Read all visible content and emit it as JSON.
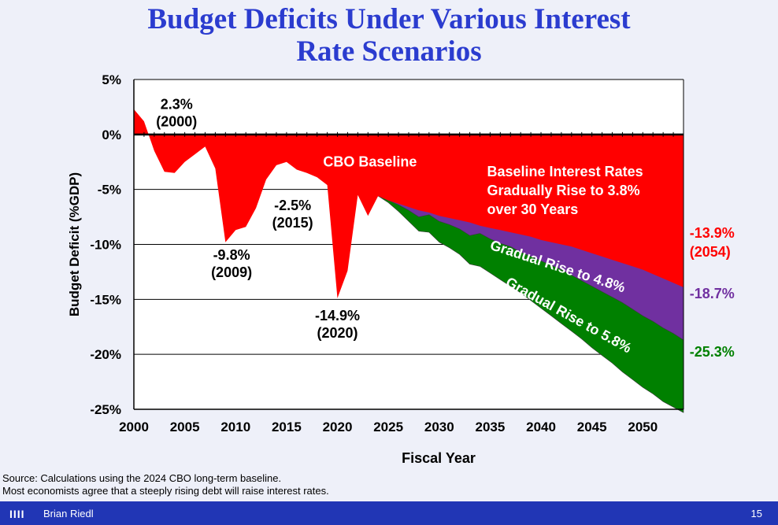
{
  "title_line1": "Budget Deficits Under Various Interest",
  "title_line2": "Rate Scenarios",
  "chart_data": {
    "type": "area",
    "title": "Budget Deficits Under Various Interest Rate Scenarios",
    "xlabel": "Fiscal Year",
    "ylabel": "Budget Deficit (%GDP)",
    "xlim": [
      2000,
      2054
    ],
    "ylim": [
      -25,
      5
    ],
    "x_ticks": [
      2000,
      2005,
      2010,
      2015,
      2020,
      2025,
      2030,
      2035,
      2040,
      2045,
      2050
    ],
    "y_ticks": [
      5,
      0,
      -5,
      -10,
      -15,
      -20,
      -25
    ],
    "y_tick_labels": [
      "5%",
      "0%",
      "-5%",
      "-10%",
      "-15%",
      "-20%",
      "-25%"
    ],
    "series": [
      {
        "name": "CBO Baseline",
        "color": "#ff0000",
        "x": [
          2000,
          2001,
          2002,
          2003,
          2004,
          2005,
          2006,
          2007,
          2008,
          2009,
          2010,
          2011,
          2012,
          2013,
          2014,
          2015,
          2016,
          2017,
          2018,
          2019,
          2020,
          2021,
          2022,
          2023,
          2024,
          2025,
          2026,
          2027,
          2028,
          2029,
          2030,
          2031,
          2032,
          2033,
          2034,
          2035,
          2036,
          2037,
          2038,
          2039,
          2040,
          2041,
          2042,
          2043,
          2044,
          2045,
          2046,
          2047,
          2048,
          2049,
          2050,
          2051,
          2052,
          2053,
          2054
        ],
        "values": [
          2.3,
          1.2,
          -1.5,
          -3.4,
          -3.5,
          -2.5,
          -1.8,
          -1.1,
          -3.1,
          -9.8,
          -8.7,
          -8.4,
          -6.7,
          -4.1,
          -2.8,
          -2.5,
          -3.2,
          -3.5,
          -3.9,
          -4.6,
          -14.9,
          -12.4,
          -5.5,
          -7.4,
          -5.6,
          -6.0,
          -6.3,
          -6.6,
          -6.9,
          -7.1,
          -7.4,
          -7.6,
          -7.8,
          -8.0,
          -8.3,
          -8.5,
          -8.7,
          -8.9,
          -9.1,
          -9.3,
          -9.6,
          -9.8,
          -10.0,
          -10.2,
          -10.5,
          -10.8,
          -11.1,
          -11.4,
          -11.7,
          -12.0,
          -12.3,
          -12.7,
          -13.1,
          -13.5,
          -13.9
        ]
      },
      {
        "name": "Gradual Rise to 4.8%",
        "color": "#7030a0",
        "x": [
          2024,
          2025,
          2026,
          2027,
          2028,
          2029,
          2030,
          2031,
          2032,
          2033,
          2034,
          2035,
          2036,
          2037,
          2038,
          2039,
          2040,
          2041,
          2042,
          2043,
          2044,
          2045,
          2046,
          2047,
          2048,
          2049,
          2050,
          2051,
          2052,
          2053,
          2054
        ],
        "values": [
          -5.6,
          -6.0,
          -6.4,
          -6.9,
          -7.5,
          -7.3,
          -7.9,
          -8.2,
          -8.6,
          -9.2,
          -9.0,
          -9.5,
          -9.9,
          -10.2,
          -10.7,
          -11.1,
          -11.5,
          -11.9,
          -12.3,
          -12.8,
          -13.3,
          -13.8,
          -14.3,
          -14.8,
          -15.3,
          -15.9,
          -16.5,
          -17.0,
          -17.6,
          -18.1,
          -18.7
        ]
      },
      {
        "name": "Gradual Rise to 5.8%",
        "color": "#008000",
        "x": [
          2024,
          2025,
          2026,
          2027,
          2028,
          2029,
          2030,
          2031,
          2032,
          2033,
          2034,
          2035,
          2036,
          2037,
          2038,
          2039,
          2040,
          2041,
          2042,
          2043,
          2044,
          2045,
          2046,
          2047,
          2048,
          2049,
          2050,
          2051,
          2052,
          2053,
          2054
        ],
        "values": [
          -5.6,
          -6.2,
          -7.0,
          -7.9,
          -8.8,
          -8.9,
          -9.8,
          -10.3,
          -10.9,
          -11.8,
          -12.0,
          -12.6,
          -13.2,
          -13.8,
          -14.4,
          -15.1,
          -15.8,
          -16.5,
          -17.2,
          -17.9,
          -18.6,
          -19.4,
          -20.1,
          -20.8,
          -21.6,
          -22.3,
          -23.0,
          -23.6,
          -24.3,
          -24.8,
          -25.3
        ]
      }
    ],
    "annotations": [
      {
        "id": "a2000",
        "lines": [
          "2.3%",
          "(2000)"
        ],
        "color": "#000000"
      },
      {
        "id": "a2009",
        "lines": [
          "-9.8%",
          "(2009)"
        ],
        "color": "#000000"
      },
      {
        "id": "a2015",
        "lines": [
          "-2.5%",
          "(2015)"
        ],
        "color": "#000000"
      },
      {
        "id": "a2020",
        "lines": [
          "-14.9%",
          "(2020)"
        ],
        "color": "#000000"
      },
      {
        "id": "cbo",
        "lines": [
          "CBO Baseline"
        ],
        "color": "#ffffff"
      },
      {
        "id": "baseline_note",
        "lines": [
          "Baseline Interest Rates",
          "Gradually Rise to 3.8%",
          "over 30 Years"
        ],
        "color": "#ffffff"
      },
      {
        "id": "rise48",
        "lines": [
          "Gradual Rise to 4.8%"
        ],
        "color": "#ffffff"
      },
      {
        "id": "rise58",
        "lines": [
          "Gradual Rise to 5.8%"
        ],
        "color": "#ffffff"
      },
      {
        "id": "end_red",
        "lines": [
          "-13.9%",
          "(2054)"
        ],
        "color": "#ff0000"
      },
      {
        "id": "end_purple",
        "lines": [
          "-18.7%"
        ],
        "color": "#7030a0"
      },
      {
        "id": "end_green",
        "lines": [
          "-25.3%"
        ],
        "color": "#008000"
      }
    ]
  },
  "source_line1": "Source: Calculations using the 2024 CBO long-term baseline.",
  "source_line2": "Most economists agree that a steeply rising debt will raise interest rates.",
  "footer": {
    "logo_bars": "IIII",
    "author": "Brian Riedl",
    "page": "15"
  }
}
